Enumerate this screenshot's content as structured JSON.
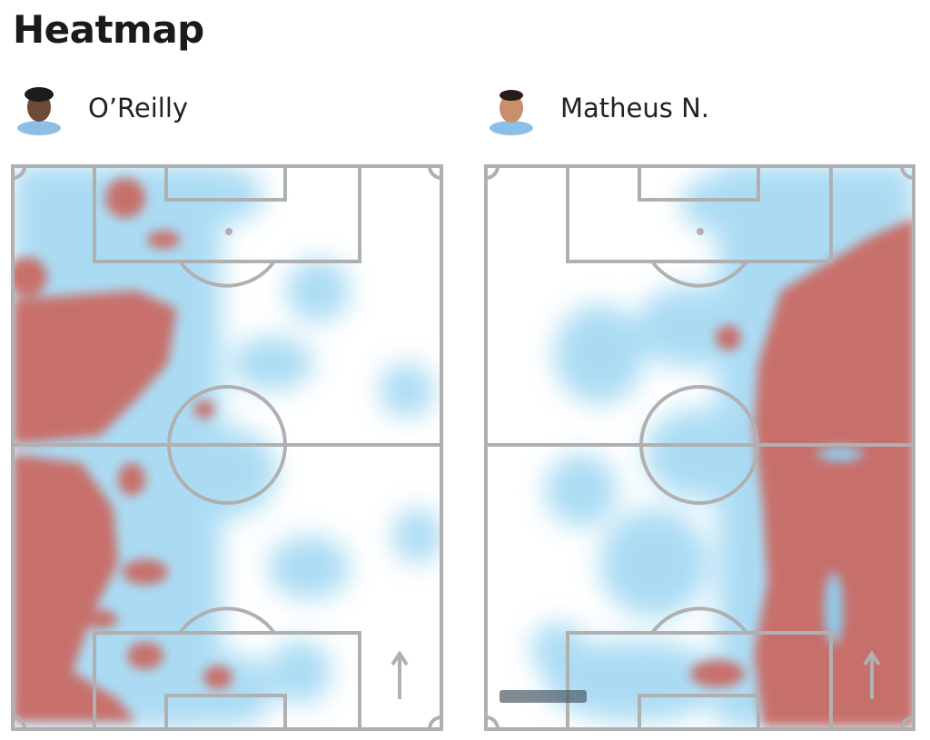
{
  "header": {
    "title": "Heatmap"
  },
  "players": [
    {
      "name": "O’Reilly"
    },
    {
      "name": "Matheus N."
    }
  ]
}
